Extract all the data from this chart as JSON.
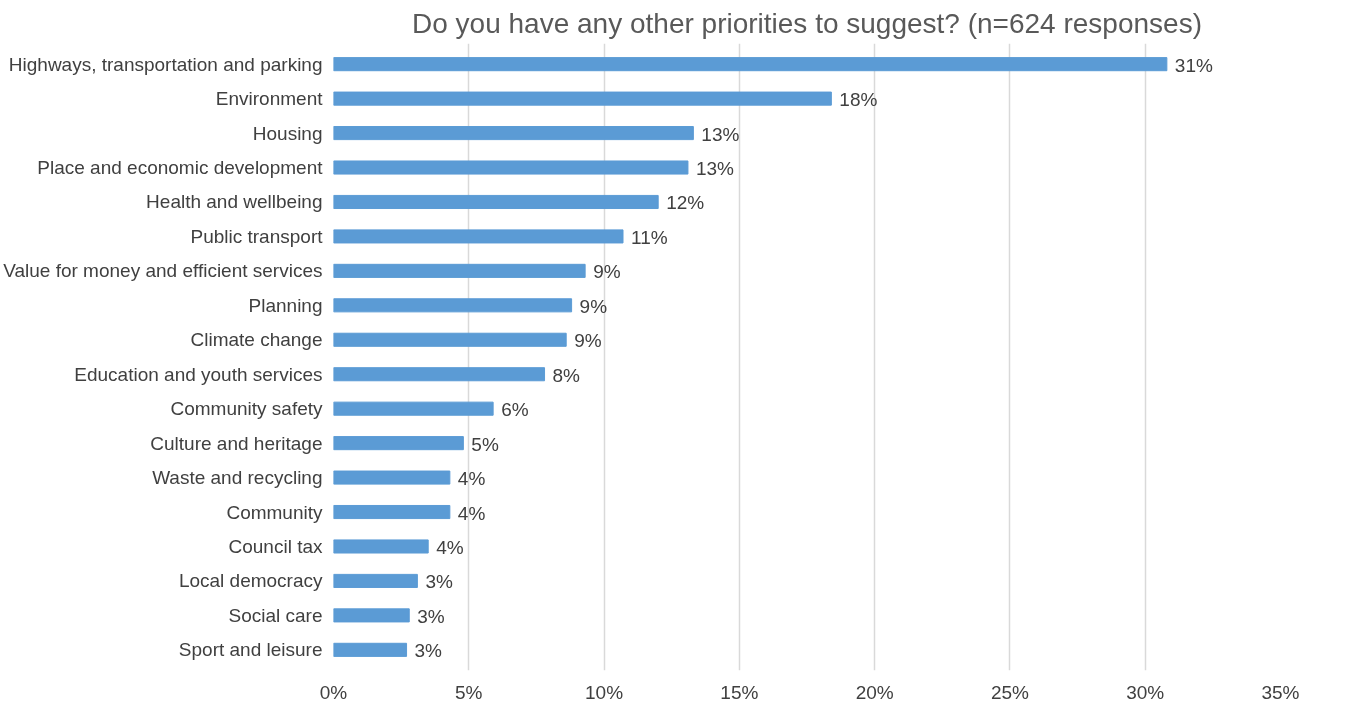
{
  "chart_data": {
    "type": "bar",
    "orientation": "horizontal",
    "title": "Do you have any other priorities to suggest? (n=624 responses)",
    "categories": [
      "Highways, transportation and parking",
      "Environment",
      "Housing",
      "Place and economic development",
      "Health and wellbeing",
      "Public transport",
      "Value for money and efficient services",
      "Planning",
      "Climate change",
      "Education and youth services",
      "Community safety",
      "Culture and heritage",
      "Waste and recycling",
      "Community",
      "Council tax",
      "Local democracy",
      "Social care",
      "Sport and leisure"
    ],
    "values": [
      30.8,
      18.4,
      13.3,
      13.1,
      12.0,
      10.7,
      9.3,
      8.8,
      8.6,
      7.8,
      5.9,
      4.8,
      4.3,
      4.3,
      3.5,
      3.1,
      2.8,
      2.7
    ],
    "value_labels": [
      "31%",
      "18%",
      "13%",
      "13%",
      "12%",
      "11%",
      "9%",
      "9%",
      "9%",
      "8%",
      "6%",
      "5%",
      "4%",
      "4%",
      "4%",
      "3%",
      "3%",
      "3%"
    ],
    "color": "#5b9bd5",
    "xlim": [
      0,
      35
    ],
    "xticks": [
      {
        "value": 0,
        "label": "0%"
      },
      {
        "value": 5,
        "label": "5%"
      },
      {
        "value": 10,
        "label": "10%"
      },
      {
        "value": 15,
        "label": "15%"
      },
      {
        "value": 20,
        "label": "20%"
      },
      {
        "value": 25,
        "label": "25%"
      },
      {
        "value": 30,
        "label": "30%"
      },
      {
        "value": 35,
        "label": "35%"
      }
    ],
    "grid": "x"
  }
}
